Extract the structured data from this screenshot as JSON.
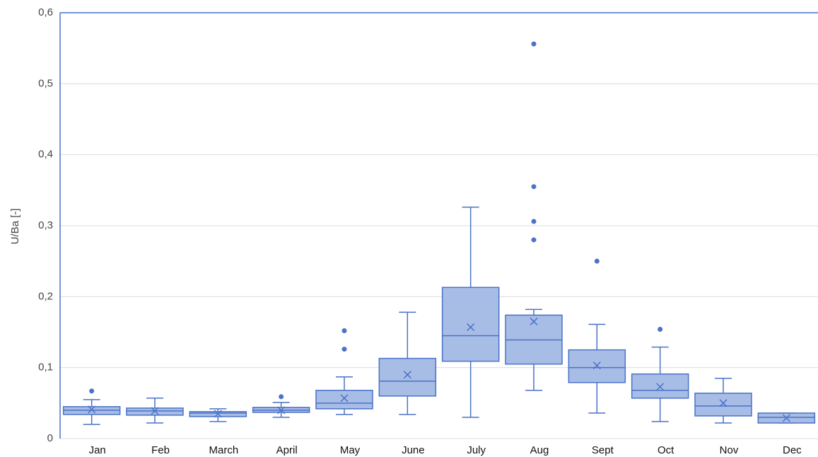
{
  "chart_data": {
    "type": "box",
    "y_label": "U/Ba [-]",
    "categories": [
      "Jan",
      "Feb",
      "March",
      "April",
      "May",
      "June",
      "July",
      "Aug",
      "Sept",
      "Oct",
      "Nov",
      "Dec"
    ],
    "boxes": [
      {
        "min": 0.02,
        "q1": 0.034,
        "median": 0.04,
        "q3": 0.045,
        "max": 0.055,
        "mean": 0.041,
        "outliers": [
          0.067
        ]
      },
      {
        "min": 0.022,
        "q1": 0.033,
        "median": 0.039,
        "q3": 0.043,
        "max": 0.057,
        "mean": 0.039,
        "outliers": []
      },
      {
        "min": 0.024,
        "q1": 0.031,
        "median": 0.036,
        "q3": 0.038,
        "max": 0.042,
        "mean": 0.035,
        "outliers": []
      },
      {
        "min": 0.03,
        "q1": 0.037,
        "median": 0.04,
        "q3": 0.044,
        "max": 0.051,
        "mean": 0.04,
        "outliers": [
          0.059
        ]
      },
      {
        "min": 0.034,
        "q1": 0.042,
        "median": 0.05,
        "q3": 0.068,
        "max": 0.087,
        "mean": 0.057,
        "outliers": [
          0.126,
          0.152
        ]
      },
      {
        "min": 0.034,
        "q1": 0.06,
        "median": 0.081,
        "q3": 0.113,
        "max": 0.178,
        "mean": 0.09,
        "outliers": []
      },
      {
        "min": 0.03,
        "q1": 0.109,
        "median": 0.145,
        "q3": 0.213,
        "max": 0.326,
        "mean": 0.157,
        "outliers": []
      },
      {
        "min": 0.068,
        "q1": 0.105,
        "median": 0.139,
        "q3": 0.174,
        "max": 0.182,
        "mean": 0.165,
        "outliers": [
          0.556,
          0.355,
          0.306,
          0.28
        ]
      },
      {
        "min": 0.036,
        "q1": 0.079,
        "median": 0.1,
        "q3": 0.125,
        "max": 0.161,
        "mean": 0.103,
        "outliers": [
          0.25
        ]
      },
      {
        "min": 0.024,
        "q1": 0.057,
        "median": 0.068,
        "q3": 0.091,
        "max": 0.129,
        "mean": 0.073,
        "outliers": [
          0.154
        ]
      },
      {
        "min": 0.022,
        "q1": 0.032,
        "median": 0.046,
        "q3": 0.064,
        "max": 0.085,
        "mean": 0.05,
        "outliers": []
      },
      {
        "min": 0.022,
        "q1": 0.022,
        "median": 0.03,
        "q3": 0.036,
        "max": 0.036,
        "mean": 0.029,
        "outliers": []
      }
    ],
    "color": "#4a72c8",
    "fill": "#a8bde6",
    "ylim": [
      0,
      0.6
    ],
    "yticks": [
      0,
      {
        "value": 0.1,
        "label": "0,1"
      },
      {
        "value": 0.2,
        "label": "0,2"
      },
      {
        "value": 0.3,
        "label": "0,3"
      },
      {
        "value": 0.4,
        "label": "0,4"
      },
      {
        "value": 0.5,
        "label": "0,5"
      },
      {
        "value": 0.6,
        "label": "0,6"
      }
    ],
    "grid": true
  }
}
